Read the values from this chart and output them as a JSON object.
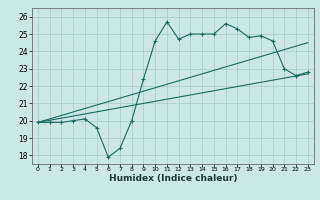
{
  "xlabel": "Humidex (Indice chaleur)",
  "background_color": "#cce8e4",
  "grid_color": "#aacfca",
  "line_color": "#1a6b60",
  "xlim": [
    -0.5,
    23.5
  ],
  "ylim": [
    17.5,
    26.5
  ],
  "xticks": [
    0,
    1,
    2,
    3,
    4,
    5,
    6,
    7,
    8,
    9,
    10,
    11,
    12,
    13,
    14,
    15,
    16,
    17,
    18,
    19,
    20,
    21,
    22,
    23
  ],
  "yticks": [
    18,
    19,
    20,
    21,
    22,
    23,
    24,
    25,
    26
  ],
  "line1_x": [
    0,
    1,
    2,
    3,
    4,
    5,
    6,
    7,
    8,
    9,
    10,
    11,
    12,
    13,
    14,
    15,
    16,
    17,
    18,
    19,
    20,
    21,
    22,
    23
  ],
  "line1_y": [
    19.9,
    19.9,
    19.9,
    20.0,
    20.1,
    19.6,
    17.9,
    18.4,
    20.0,
    22.4,
    24.6,
    25.7,
    24.7,
    25.0,
    25.0,
    25.0,
    25.6,
    25.3,
    24.8,
    24.9,
    24.6,
    23.0,
    22.6,
    22.8
  ],
  "line2_x": [
    0,
    23
  ],
  "line2_y": [
    19.9,
    24.5
  ],
  "line3_x": [
    0,
    23
  ],
  "line3_y": [
    19.9,
    22.7
  ]
}
